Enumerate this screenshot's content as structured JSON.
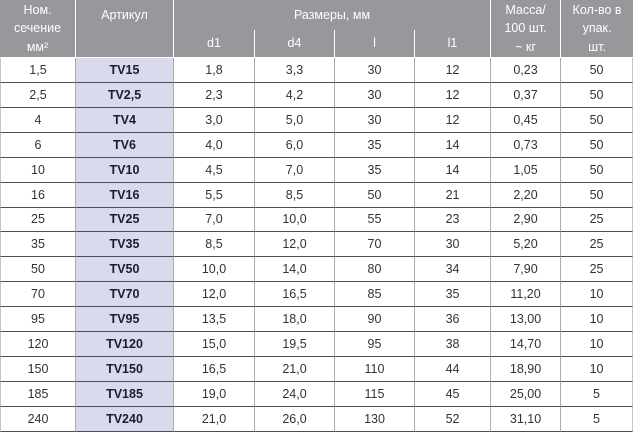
{
  "table": {
    "headers": {
      "section": "Ном.\nсечение\nмм²",
      "article": "Артикул",
      "dimensions": "Размеры, мм",
      "sub": [
        "d1",
        "d4",
        "l",
        "l1"
      ],
      "mass": "Масса/\n100 шт.\n~ кг",
      "qty": "Кол-во в\nупак.\nшт."
    },
    "rows": [
      [
        "1,5",
        "TV15",
        "1,8",
        "3,3",
        "30",
        "12",
        "0,23",
        "50"
      ],
      [
        "2,5",
        "TV2,5",
        "2,3",
        "4,2",
        "30",
        "12",
        "0,37",
        "50"
      ],
      [
        "4",
        "TV4",
        "3,0",
        "5,0",
        "30",
        "12",
        "0,45",
        "50"
      ],
      [
        "6",
        "TV6",
        "4,0",
        "6,0",
        "35",
        "14",
        "0,73",
        "50"
      ],
      [
        "10",
        "TV10",
        "4,5",
        "7,0",
        "35",
        "14",
        "1,05",
        "50"
      ],
      [
        "16",
        "TV16",
        "5,5",
        "8,5",
        "50",
        "21",
        "2,20",
        "50"
      ],
      [
        "25",
        "TV25",
        "7,0",
        "10,0",
        "55",
        "23",
        "2,90",
        "25"
      ],
      [
        "35",
        "TV35",
        "8,5",
        "12,0",
        "70",
        "30",
        "5,20",
        "25"
      ],
      [
        "50",
        "TV50",
        "10,0",
        "14,0",
        "80",
        "34",
        "7,90",
        "25"
      ],
      [
        "70",
        "TV70",
        "12,0",
        "16,5",
        "85",
        "35",
        "11,20",
        "10"
      ],
      [
        "95",
        "TV95",
        "13,5",
        "18,0",
        "90",
        "36",
        "13,00",
        "10"
      ],
      [
        "120",
        "TV120",
        "15,0",
        "19,5",
        "95",
        "38",
        "14,70",
        "10"
      ],
      [
        "150",
        "TV150",
        "16,5",
        "21,0",
        "110",
        "44",
        "18,90",
        "10"
      ],
      [
        "185",
        "TV185",
        "19,0",
        "24,0",
        "115",
        "45",
        "25,00",
        "5"
      ],
      [
        "240",
        "TV240",
        "21,0",
        "26,0",
        "130",
        "52",
        "31,10",
        "5"
      ]
    ]
  },
  "colors": {
    "header_bg": "#97979c",
    "header_text": "#ffffff",
    "article_bg": "#d9daec",
    "article_text": "#1c1c30",
    "row_border": "#4d4d52",
    "grid_border": "#ababb3"
  }
}
